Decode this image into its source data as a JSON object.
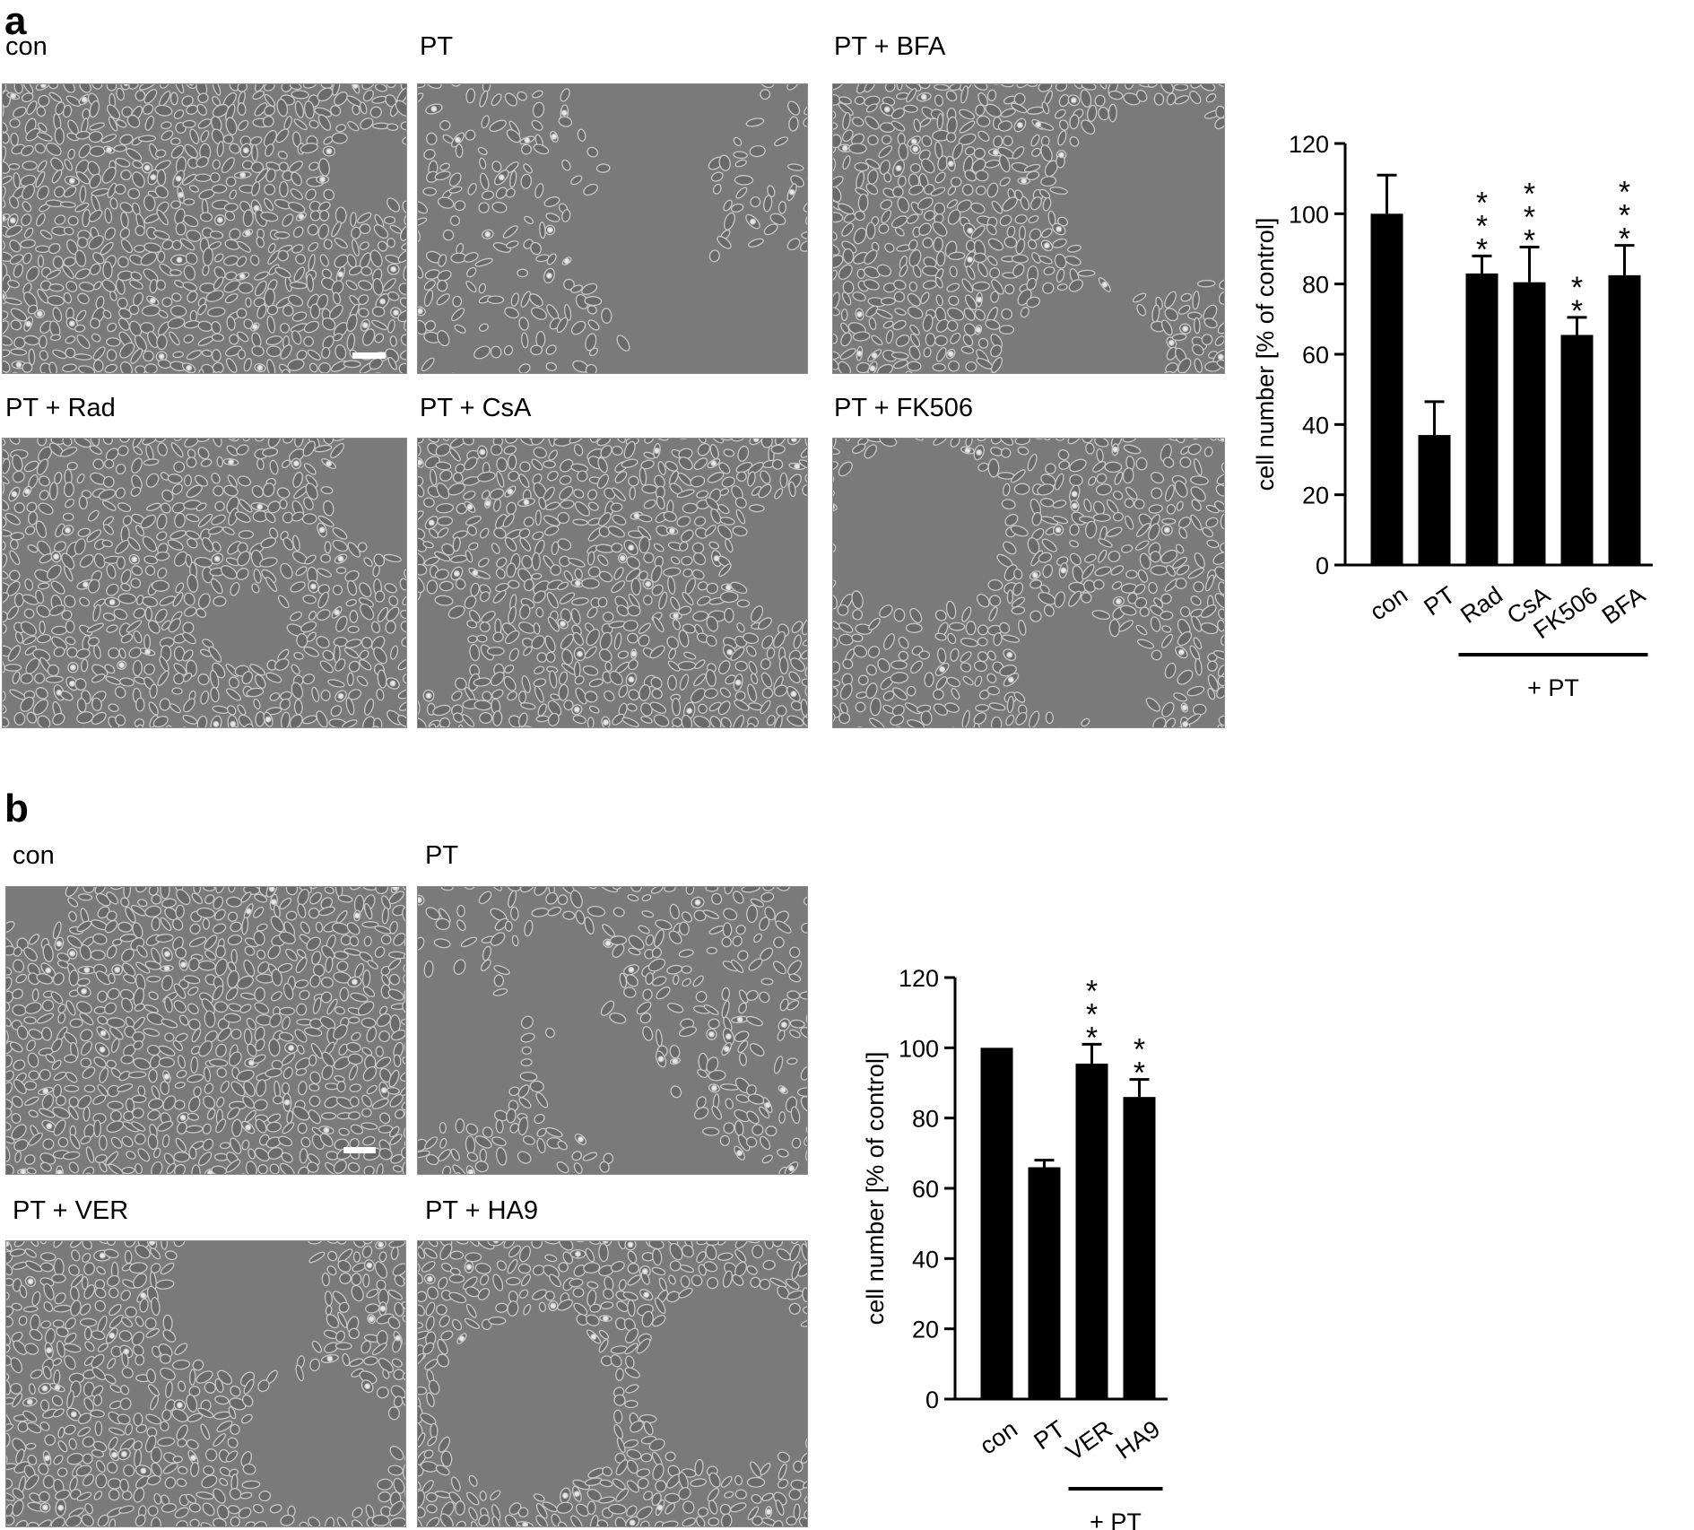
{
  "panel_a": {
    "letter": "a",
    "images": [
      {
        "label": "con",
        "density": 0.92
      },
      {
        "label": "PT",
        "density": 0.35
      },
      {
        "label": "PT + BFA",
        "density": 0.85
      },
      {
        "label": "PT + Rad",
        "density": 0.78
      },
      {
        "label": "PT + CsA",
        "density": 0.85
      },
      {
        "label": "PT + FK506",
        "density": 0.72
      }
    ],
    "bracket_label": "+ PT"
  },
  "panel_b": {
    "letter": "b",
    "images": [
      {
        "label": "con",
        "density": 0.95
      },
      {
        "label": "PT",
        "density": 0.5
      },
      {
        "label": "PT + VER",
        "density": 0.85
      },
      {
        "label": "PT + HA9",
        "density": 0.85
      }
    ],
    "bracket_label": "+ PT"
  },
  "chart_data": [
    {
      "type": "bar",
      "ylabel": "cell number [% of control]",
      "ylim": [
        0,
        120
      ],
      "yticks": [
        0,
        20,
        40,
        60,
        80,
        100,
        120
      ],
      "categories": [
        "con",
        "PT",
        "Rad",
        "CsA",
        "FK506",
        "BFA"
      ],
      "values": [
        100,
        37,
        83,
        80.5,
        65.5,
        82.5
      ],
      "errors": [
        11,
        9.5,
        5,
        10,
        5,
        8.5
      ],
      "significance": [
        "",
        "",
        "***",
        "***",
        "**",
        "***"
      ],
      "bracket": {
        "label": "+ PT",
        "from": "Rad",
        "to": "BFA"
      },
      "bar_color": "#000000"
    },
    {
      "type": "bar",
      "ylabel": "cell number [% of control]",
      "ylim": [
        0,
        120
      ],
      "yticks": [
        0,
        20,
        40,
        60,
        80,
        100,
        120
      ],
      "categories": [
        "con",
        "PT",
        "VER",
        "HA9"
      ],
      "values": [
        100,
        66,
        95.5,
        86
      ],
      "errors": [
        0,
        2,
        5.5,
        5
      ],
      "significance": [
        "",
        "",
        "***",
        "**"
      ],
      "bracket": {
        "label": "+ PT",
        "from": "VER",
        "to": "HA9"
      },
      "bar_color": "#000000"
    }
  ]
}
